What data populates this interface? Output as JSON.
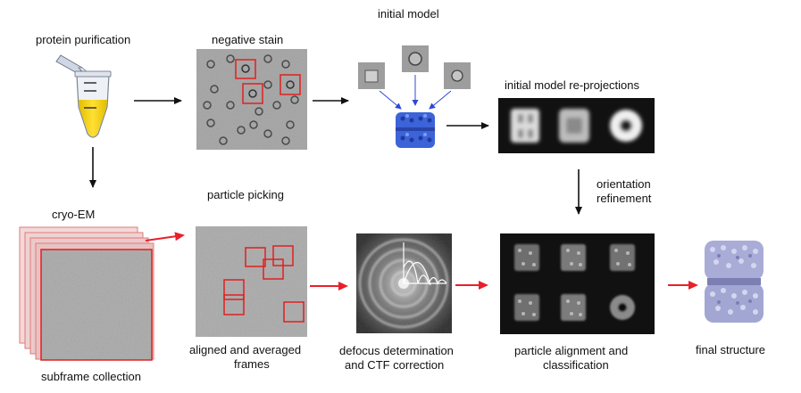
{
  "labels": {
    "protein_purification": "protein purification",
    "negative_stain": "negative stain",
    "initial_model": "initial model",
    "initial_model_reprojections": "initial model re-projections",
    "orientation_refinement_1": "orientation",
    "orientation_refinement_2": "refinement",
    "cryo_em": "cryo-EM",
    "particle_picking": "particle picking",
    "subframe_collection": "subframe collection",
    "aligned_averaged_1": "aligned and averaged",
    "aligned_averaged_2": "frames",
    "defocus_1": "defocus determination",
    "defocus_2": "and CTF correction",
    "alignment_1": "particle alignment and",
    "alignment_2": "classification",
    "final_structure": "final structure"
  },
  "colors": {
    "arrow_black": "#111111",
    "arrow_red": "#e8202a",
    "arrow_blue": "#2f47d6",
    "box_red": "#e02020",
    "tube_liquid": "#f5d000",
    "model_blue": "#3d63d8",
    "final_lavender": "#a9acd6",
    "micrograph_gray": "#a3a3a3",
    "dark_panel": "#111111"
  }
}
